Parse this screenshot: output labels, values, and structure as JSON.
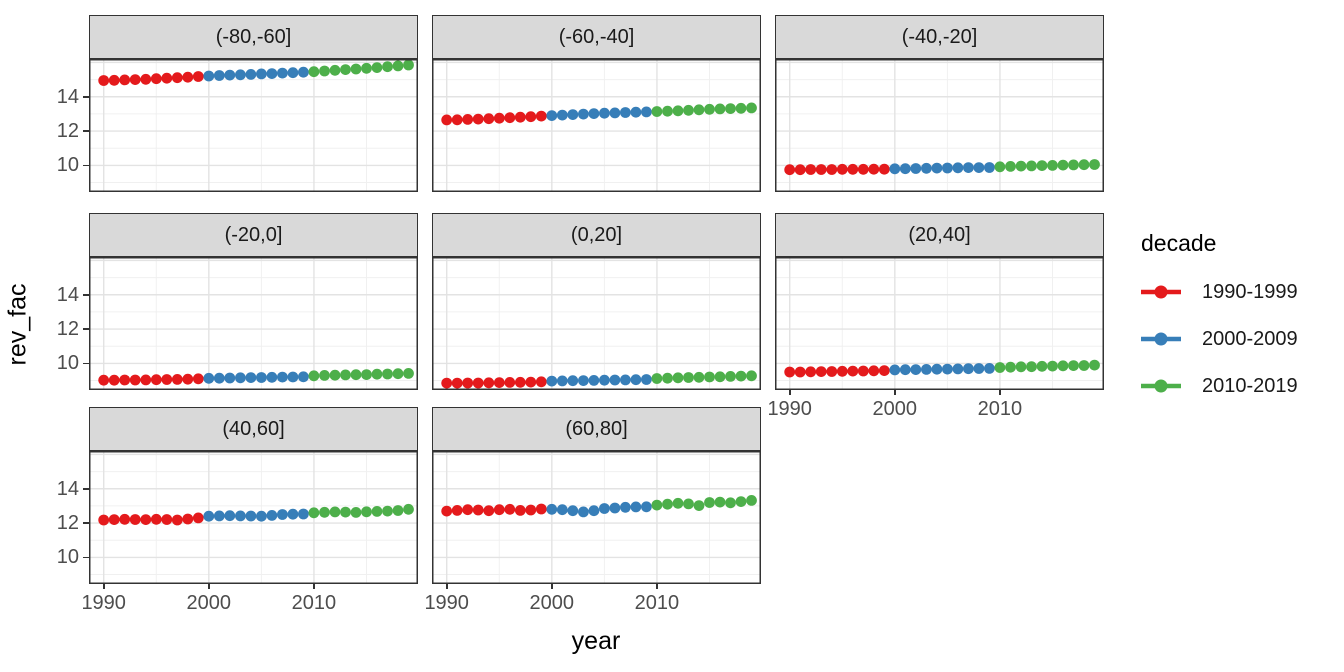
{
  "chart_data": {
    "type": "scatter",
    "title": "",
    "xlabel": "year",
    "ylabel": "rev_fac",
    "legend": {
      "title": "decade",
      "position": "right"
    },
    "years": [
      1990,
      1991,
      1992,
      1993,
      1994,
      1995,
      1996,
      1997,
      1998,
      1999,
      2000,
      2001,
      2002,
      2003,
      2004,
      2005,
      2006,
      2007,
      2008,
      2009,
      2010,
      2011,
      2012,
      2013,
      2014,
      2015,
      2016,
      2017,
      2018,
      2019
    ],
    "decades": [
      {
        "label": "1990-1999",
        "color": "#E41A1C",
        "from": 1990,
        "to": 1999
      },
      {
        "label": "2000-2009",
        "color": "#377EB8",
        "from": 2000,
        "to": 2009
      },
      {
        "label": "2010-2019",
        "color": "#4DAF4A",
        "from": 2010,
        "to": 2019
      }
    ],
    "facets": [
      {
        "label": "(-80,-60]",
        "values": [
          14.95,
          14.96,
          14.98,
          15.0,
          15.02,
          15.05,
          15.08,
          15.11,
          15.14,
          15.18,
          15.21,
          15.24,
          15.26,
          15.28,
          15.3,
          15.33,
          15.35,
          15.38,
          15.4,
          15.43,
          15.46,
          15.5,
          15.54,
          15.58,
          15.62,
          15.66,
          15.7,
          15.75,
          15.8,
          15.85
        ]
      },
      {
        "label": "(-60,-40]",
        "values": [
          12.65,
          12.66,
          12.68,
          12.7,
          12.72,
          12.75,
          12.78,
          12.81,
          12.84,
          12.87,
          12.9,
          12.93,
          12.96,
          12.99,
          13.02,
          13.04,
          13.06,
          13.08,
          13.1,
          13.12,
          13.14,
          13.16,
          13.18,
          13.21,
          13.24,
          13.27,
          13.29,
          13.31,
          13.33,
          13.35
        ]
      },
      {
        "label": "(-40,-20]",
        "values": [
          9.75,
          9.75,
          9.76,
          9.76,
          9.76,
          9.77,
          9.77,
          9.77,
          9.78,
          9.78,
          9.8,
          9.81,
          9.82,
          9.83,
          9.84,
          9.85,
          9.86,
          9.87,
          9.87,
          9.88,
          9.92,
          9.94,
          9.96,
          9.97,
          9.99,
          10.0,
          10.02,
          10.03,
          10.04,
          10.05
        ]
      },
      {
        "label": "(-20,0]",
        "values": [
          9.02,
          9.02,
          9.03,
          9.03,
          9.04,
          9.05,
          9.06,
          9.07,
          9.08,
          9.1,
          9.13,
          9.14,
          9.15,
          9.16,
          9.17,
          9.18,
          9.19,
          9.2,
          9.21,
          9.22,
          9.28,
          9.3,
          9.31,
          9.33,
          9.34,
          9.35,
          9.37,
          9.38,
          9.4,
          9.42
        ]
      },
      {
        "label": "(0,20]",
        "values": [
          8.85,
          8.85,
          8.86,
          8.86,
          8.87,
          8.88,
          8.89,
          8.9,
          8.91,
          8.93,
          8.97,
          8.98,
          8.99,
          9.0,
          9.01,
          9.02,
          9.03,
          9.04,
          9.05,
          9.06,
          9.12,
          9.14,
          9.16,
          9.18,
          9.19,
          9.21,
          9.22,
          9.24,
          9.26,
          9.28
        ]
      },
      {
        "label": "(20,40]",
        "values": [
          9.5,
          9.5,
          9.51,
          9.52,
          9.53,
          9.54,
          9.55,
          9.56,
          9.57,
          9.58,
          9.62,
          9.63,
          9.64,
          9.65,
          9.66,
          9.67,
          9.68,
          9.69,
          9.7,
          9.71,
          9.76,
          9.78,
          9.8,
          9.81,
          9.83,
          9.84,
          9.86,
          9.87,
          9.88,
          9.9
        ]
      },
      {
        "label": "(40,60]",
        "values": [
          12.18,
          12.2,
          12.22,
          12.21,
          12.2,
          12.22,
          12.21,
          12.18,
          12.24,
          12.3,
          12.4,
          12.42,
          12.43,
          12.42,
          12.41,
          12.4,
          12.45,
          12.5,
          12.52,
          12.53,
          12.6,
          12.63,
          12.65,
          12.64,
          12.62,
          12.66,
          12.68,
          12.7,
          12.73,
          12.8
        ]
      },
      {
        "label": "(60,80]",
        "values": [
          12.7,
          12.74,
          12.78,
          12.76,
          12.72,
          12.78,
          12.8,
          12.74,
          12.76,
          12.82,
          12.8,
          12.78,
          12.72,
          12.65,
          12.72,
          12.85,
          12.88,
          12.92,
          12.94,
          12.95,
          13.05,
          13.1,
          13.15,
          13.12,
          13.02,
          13.2,
          13.22,
          13.18,
          13.25,
          13.32
        ]
      }
    ],
    "x_ticks": [
      "1990",
      "2000",
      "2010"
    ],
    "y_ticks": [
      "14",
      "12",
      "10"
    ],
    "x_tick_values": [
      1990,
      2000,
      2010
    ],
    "y_tick_values": [
      14,
      12,
      10
    ],
    "xlim": [
      1988.6,
      2019.9
    ],
    "ylim": [
      8.45,
      16.2
    ],
    "grid": {
      "on": true,
      "major_x": [
        1990,
        2000,
        2010
      ],
      "minor_x": [
        1995,
        2005,
        2015
      ],
      "major_y": [
        10,
        12,
        14,
        16
      ],
      "minor_y": [
        9,
        11,
        13,
        15
      ]
    },
    "style": {
      "panel_bg": "#FFFFFF",
      "strip_bg": "#D9D9D9",
      "border_color": "#333333",
      "grid_major_color": "#E3E3E3",
      "grid_minor_color": "#F0F0F0",
      "tick_text_color": "#4D4D4D",
      "point_radius": 5.4
    }
  }
}
